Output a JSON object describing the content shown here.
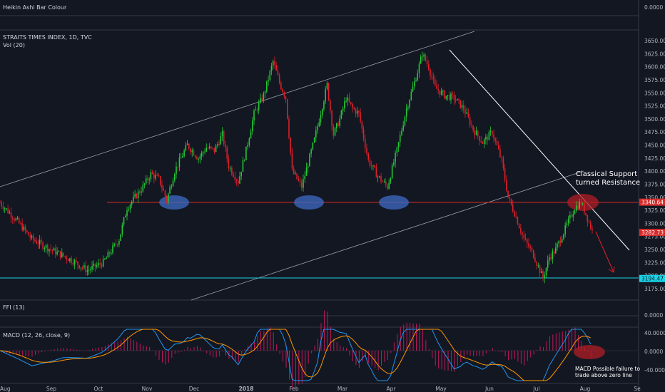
{
  "panels": {
    "top": {
      "label": "Heikin Ashi Bar Colour",
      "value": "0.0000"
    },
    "main": {
      "title": "STRAITS TIMES INDEX, 1D, TVC",
      "subtitle": "Vol (20)"
    },
    "ffi": {
      "label": "FFI (13)",
      "value": "0.0000"
    },
    "macd": {
      "label": "MACD (12, 26, close, 9)"
    }
  },
  "annotations": {
    "resistance_line1": "Classical Support",
    "resistance_line2": "turned Resistance",
    "macd_line1": "MACD Possible failure to",
    "macd_line2": "trade above zero line"
  },
  "colors": {
    "background": "#131722",
    "up": "#26c936",
    "down": "#e0202a",
    "level_red": "#d62a2a",
    "level_cyan": "#19d3e6",
    "ellipse_blue": "#3d6bc4",
    "macd_line": "#2196f3",
    "signal_line": "#ff9800",
    "hist": "#c2185b"
  },
  "chart_data": {
    "type": "candlestick",
    "title": "STRAITS TIMES INDEX, 1D, TVC",
    "x_ticks": [
      "Aug",
      "Sep",
      "Oct",
      "Nov",
      "Dec",
      "2018",
      "Feb",
      "Mar",
      "Apr",
      "May",
      "Jun",
      "Jul",
      "Aug",
      "Se"
    ],
    "y_ticks": [
      "3650.00",
      "3625.00",
      "3600.00",
      "3575.00",
      "3550.00",
      "3525.00",
      "3500.00",
      "3475.00",
      "3450.00",
      "3425.00",
      "3400.00",
      "3375.00",
      "3350.00",
      "3325.00",
      "3300.00",
      "3275.00",
      "3250.00",
      "3225.00",
      "3200.00",
      "3175.00"
    ],
    "ylim": [
      3160,
      3665
    ],
    "levels": [
      {
        "label": "3340.64",
        "value": 3340.64
      },
      {
        "label": "3282.73",
        "value": 3282.73
      },
      {
        "label": "3194.47",
        "value": 3194.47
      }
    ],
    "macd_ticks": [
      "40.0000",
      "0.0000",
      "-40.0000"
    ],
    "price_path": [
      [
        0,
        3340
      ],
      [
        12,
        3300
      ],
      [
        20,
        3270
      ],
      [
        32,
        3250
      ],
      [
        45,
        3230
      ],
      [
        55,
        3210
      ],
      [
        65,
        3225
      ],
      [
        75,
        3270
      ],
      [
        80,
        3330
      ],
      [
        90,
        3370
      ],
      [
        95,
        3395
      ],
      [
        100,
        3385
      ],
      [
        105,
        3345
      ],
      [
        110,
        3400
      ],
      [
        118,
        3450
      ],
      [
        125,
        3425
      ],
      [
        130,
        3445
      ],
      [
        135,
        3440
      ],
      [
        140,
        3470
      ],
      [
        144,
        3410
      ],
      [
        150,
        3380
      ],
      [
        155,
        3440
      ],
      [
        160,
        3510
      ],
      [
        166,
        3545
      ],
      [
        172,
        3610
      ],
      [
        176,
        3570
      ],
      [
        180,
        3540
      ],
      [
        184,
        3400
      ],
      [
        190,
        3370
      ],
      [
        198,
        3460
      ],
      [
        206,
        3565
      ],
      [
        210,
        3470
      ],
      [
        214,
        3500
      ],
      [
        218,
        3540
      ],
      [
        222,
        3520
      ],
      [
        226,
        3510
      ],
      [
        232,
        3420
      ],
      [
        238,
        3390
      ],
      [
        244,
        3370
      ],
      [
        250,
        3440
      ],
      [
        256,
        3520
      ],
      [
        262,
        3580
      ],
      [
        266,
        3625
      ],
      [
        270,
        3600
      ],
      [
        274,
        3560
      ],
      [
        280,
        3545
      ],
      [
        286,
        3540
      ],
      [
        292,
        3520
      ],
      [
        298,
        3480
      ],
      [
        304,
        3455
      ],
      [
        310,
        3475
      ],
      [
        316,
        3420
      ],
      [
        320,
        3350
      ],
      [
        324,
        3320
      ],
      [
        330,
        3270
      ],
      [
        336,
        3240
      ],
      [
        342,
        3195
      ],
      [
        346,
        3235
      ],
      [
        350,
        3250
      ],
      [
        356,
        3290
      ],
      [
        362,
        3330
      ],
      [
        366,
        3340
      ],
      [
        370,
        3310
      ],
      [
        373,
        3285
      ]
    ]
  }
}
